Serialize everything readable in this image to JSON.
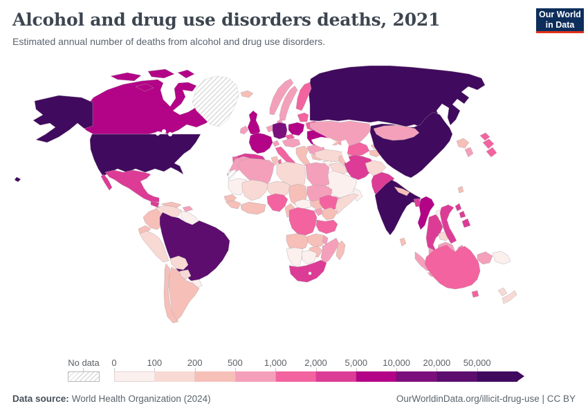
{
  "header": {
    "title": "Alcohol and drug use disorders deaths, 2021",
    "subtitle": "Estimated annual number of deaths from alcohol and drug use disorders.",
    "logo": {
      "line1": "Our World",
      "line2": "in Data",
      "bg_color": "#0d2e5b",
      "accent_color": "#e0311c"
    }
  },
  "legend": {
    "no_data_label": "No data",
    "tick_labels": [
      "0",
      "100",
      "200",
      "500",
      "1,000",
      "2,000",
      "5,000",
      "10,000",
      "20,000",
      "50,000"
    ]
  },
  "footer": {
    "source_label": "Data source:",
    "source_value": "World Health Organization (2024)",
    "attribution": "OurWorldinData.org/illicit-drug-use | CC BY"
  },
  "chart_data": {
    "type": "choropleth_map",
    "title": "Alcohol and drug use disorders deaths, 2021",
    "unit": "deaths per year",
    "year": 2021,
    "legend_position": "bottom",
    "no_data_style": "diagonal-hatch",
    "palette": [
      "#fcf0ef",
      "#f8d9d4",
      "#f6bfb8",
      "#f4a0bb",
      "#f2639f",
      "#dc3c96",
      "#b30487",
      "#7b107c",
      "#5c0d6e",
      "#400a5e"
    ],
    "bin_labels": [
      "0–100",
      "100–200",
      "200–500",
      "500–1,000",
      "1,000–2,000",
      "2,000–5,000",
      "5,000–10,000",
      "10,000–20,000",
      "20,000–50,000",
      "50,000+"
    ],
    "border_color": "#a89fa6",
    "regions": [
      {
        "id": "russia",
        "name": "Russia",
        "bin": 9
      },
      {
        "id": "canada",
        "name": "Canada",
        "bin": 6
      },
      {
        "id": "greenland",
        "name": "Greenland",
        "bin": null
      },
      {
        "id": "usa",
        "name": "United States",
        "bin": 9
      },
      {
        "id": "mexico",
        "name": "Mexico",
        "bin": 5
      },
      {
        "id": "guatemala",
        "name": "Guatemala",
        "bin": 5
      },
      {
        "id": "central_america",
        "name": "Central America",
        "bin": 2
      },
      {
        "id": "cuba",
        "name": "Cuba",
        "bin": 2
      },
      {
        "id": "hispaniola",
        "name": "Hispaniola",
        "bin": 3
      },
      {
        "id": "colombia",
        "name": "Colombia",
        "bin": 2
      },
      {
        "id": "venezuela",
        "name": "Venezuela",
        "bin": 1
      },
      {
        "id": "guyanas",
        "name": "Guyanas",
        "bin": 0
      },
      {
        "id": "ecuador",
        "name": "Ecuador",
        "bin": 2
      },
      {
        "id": "peru",
        "name": "Peru",
        "bin": 1
      },
      {
        "id": "brazil",
        "name": "Brazil",
        "bin": 8
      },
      {
        "id": "bolivia",
        "name": "Bolivia",
        "bin": 1
      },
      {
        "id": "paraguay",
        "name": "Paraguay",
        "bin": 1
      },
      {
        "id": "uruguay",
        "name": "Uruguay",
        "bin": 0
      },
      {
        "id": "argentina",
        "name": "Argentina",
        "bin": 2
      },
      {
        "id": "chile",
        "name": "Chile",
        "bin": 2
      },
      {
        "id": "iceland",
        "name": "Iceland",
        "bin": 2
      },
      {
        "id": "norway",
        "name": "Norway",
        "bin": 3
      },
      {
        "id": "sweden",
        "name": "Sweden",
        "bin": 3
      },
      {
        "id": "finland",
        "name": "Finland",
        "bin": 4
      },
      {
        "id": "denmark",
        "name": "Denmark",
        "bin": 3
      },
      {
        "id": "uk",
        "name": "United Kingdom",
        "bin": 6
      },
      {
        "id": "ireland",
        "name": "Ireland",
        "bin": 3
      },
      {
        "id": "benelux",
        "name": "Benelux",
        "bin": 3
      },
      {
        "id": "germany",
        "name": "Germany",
        "bin": 7
      },
      {
        "id": "france",
        "name": "France",
        "bin": 6
      },
      {
        "id": "spain",
        "name": "Spain",
        "bin": 5
      },
      {
        "id": "portugal",
        "name": "Portugal",
        "bin": 4
      },
      {
        "id": "italy",
        "name": "Italy",
        "bin": 4
      },
      {
        "id": "switzerland",
        "name": "Switzerland",
        "bin": 3
      },
      {
        "id": "czechia",
        "name": "Czechia",
        "bin": 4
      },
      {
        "id": "austria_hungary",
        "name": "Austria and Hungary",
        "bin": 3
      },
      {
        "id": "poland",
        "name": "Poland",
        "bin": 6
      },
      {
        "id": "baltics",
        "name": "Baltic states",
        "bin": 4
      },
      {
        "id": "belarus",
        "name": "Belarus",
        "bin": 4
      },
      {
        "id": "ukraine",
        "name": "Ukraine",
        "bin": 6
      },
      {
        "id": "romania",
        "name": "Romania",
        "bin": 3
      },
      {
        "id": "bulgaria",
        "name": "Bulgaria",
        "bin": 2
      },
      {
        "id": "balkans",
        "name": "Western Balkans",
        "bin": 2
      },
      {
        "id": "greece",
        "name": "Greece",
        "bin": 2
      },
      {
        "id": "turkey",
        "name": "Turkey",
        "bin": 1
      },
      {
        "id": "kazakhstan",
        "name": "Kazakhstan",
        "bin": 3
      },
      {
        "id": "uzbekistan",
        "name": "Uzbekistan",
        "bin": 4
      },
      {
        "id": "turkmenistan",
        "name": "Turkmenistan",
        "bin": 2
      },
      {
        "id": "kyrgyzstan",
        "name": "Kyrgyzstan",
        "bin": 2
      },
      {
        "id": "tajikistan",
        "name": "Tajikistan",
        "bin": 2
      },
      {
        "id": "caucasus",
        "name": "Caucasus",
        "bin": 2
      },
      {
        "id": "syria",
        "name": "Syria",
        "bin": 0
      },
      {
        "id": "iraq",
        "name": "Iraq",
        "bin": 1
      },
      {
        "id": "israel_jordan",
        "name": "Israel and Jordan",
        "bin": 0
      },
      {
        "id": "saudi_arabia",
        "name": "Saudi Arabia",
        "bin": 0
      },
      {
        "id": "yemen",
        "name": "Yemen",
        "bin": 1
      },
      {
        "id": "oman",
        "name": "Oman",
        "bin": 0
      },
      {
        "id": "iran",
        "name": "Iran",
        "bin": 5
      },
      {
        "id": "afghanistan",
        "name": "Afghanistan",
        "bin": 1
      },
      {
        "id": "pakistan",
        "name": "Pakistan",
        "bin": 5
      },
      {
        "id": "india",
        "name": "India",
        "bin": 9
      },
      {
        "id": "nepal",
        "name": "Nepal",
        "bin": 2
      },
      {
        "id": "bangladesh",
        "name": "Bangladesh",
        "bin": 5
      },
      {
        "id": "sri_lanka",
        "name": "Sri Lanka",
        "bin": 2
      },
      {
        "id": "china",
        "name": "China",
        "bin": 9
      },
      {
        "id": "mongolia",
        "name": "Mongolia",
        "bin": 3
      },
      {
        "id": "myanmar",
        "name": "Myanmar",
        "bin": 6
      },
      {
        "id": "thailand",
        "name": "Thailand",
        "bin": 5
      },
      {
        "id": "laos",
        "name": "Laos",
        "bin": 0
      },
      {
        "id": "cambodia",
        "name": "Cambodia",
        "bin": 1
      },
      {
        "id": "vietnam",
        "name": "Vietnam",
        "bin": 5
      },
      {
        "id": "malaysia",
        "name": "Malaysia",
        "bin": 3
      },
      {
        "id": "north_korea",
        "name": "North Korea",
        "bin": 2
      },
      {
        "id": "south_korea",
        "name": "South Korea",
        "bin": 3
      },
      {
        "id": "japan",
        "name": "Japan",
        "bin": 4
      },
      {
        "id": "taiwan",
        "name": "Taiwan",
        "bin": 2
      },
      {
        "id": "philippines",
        "name": "Philippines",
        "bin": 5
      },
      {
        "id": "indonesia",
        "name": "Indonesia",
        "bin": 3
      },
      {
        "id": "papua_new_guinea",
        "name": "Papua New Guinea",
        "bin": 0
      },
      {
        "id": "morocco",
        "name": "Morocco",
        "bin": 3
      },
      {
        "id": "western_sahara",
        "name": "Western Sahara",
        "bin": null
      },
      {
        "id": "algeria",
        "name": "Algeria",
        "bin": 3
      },
      {
        "id": "tunisia",
        "name": "Tunisia",
        "bin": 2
      },
      {
        "id": "libya",
        "name": "Libya",
        "bin": 1
      },
      {
        "id": "egypt",
        "name": "Egypt",
        "bin": 3
      },
      {
        "id": "mauritania",
        "name": "Mauritania",
        "bin": 0
      },
      {
        "id": "mali",
        "name": "Mali",
        "bin": 1
      },
      {
        "id": "niger",
        "name": "Niger",
        "bin": 1
      },
      {
        "id": "chad",
        "name": "Chad",
        "bin": 2
      },
      {
        "id": "sudan",
        "name": "Sudan",
        "bin": 3
      },
      {
        "id": "senegal",
        "name": "Senegal",
        "bin": 2
      },
      {
        "id": "guinea_group",
        "name": "Guinea",
        "bin": 2
      },
      {
        "id": "west_africa_coast",
        "name": "Ghana and Côte d'Ivoire",
        "bin": 2
      },
      {
        "id": "nigeria",
        "name": "Nigeria",
        "bin": 4
      },
      {
        "id": "cameroon",
        "name": "Cameroon",
        "bin": 2
      },
      {
        "id": "central_african_republic",
        "name": "Central African Republic",
        "bin": 0
      },
      {
        "id": "south_sudan",
        "name": "South Sudan",
        "bin": 2
      },
      {
        "id": "ethiopia",
        "name": "Ethiopia",
        "bin": 4
      },
      {
        "id": "somalia",
        "name": "Somalia",
        "bin": 1
      },
      {
        "id": "uganda",
        "name": "Uganda",
        "bin": 3
      },
      {
        "id": "kenya",
        "name": "Kenya",
        "bin": 2
      },
      {
        "id": "dr_congo",
        "name": "Democratic Republic of Congo",
        "bin": 4
      },
      {
        "id": "tanzania",
        "name": "Tanzania",
        "bin": 4
      },
      {
        "id": "angola",
        "name": "Angola",
        "bin": 2
      },
      {
        "id": "zambia",
        "name": "Zambia",
        "bin": 2
      },
      {
        "id": "malawi",
        "name": "Malawi",
        "bin": 3
      },
      {
        "id": "mozambique",
        "name": "Mozambique",
        "bin": 3
      },
      {
        "id": "zimbabwe",
        "name": "Zimbabwe",
        "bin": 2
      },
      {
        "id": "namibia",
        "name": "Namibia",
        "bin": 0
      },
      {
        "id": "botswana",
        "name": "Botswana",
        "bin": 0
      },
      {
        "id": "south_africa",
        "name": "South Africa",
        "bin": 5
      },
      {
        "id": "madagascar",
        "name": "Madagascar",
        "bin": 2
      },
      {
        "id": "australia",
        "name": "Australia",
        "bin": 4
      },
      {
        "id": "new_zealand",
        "name": "New Zealand",
        "bin": 1
      }
    ]
  }
}
